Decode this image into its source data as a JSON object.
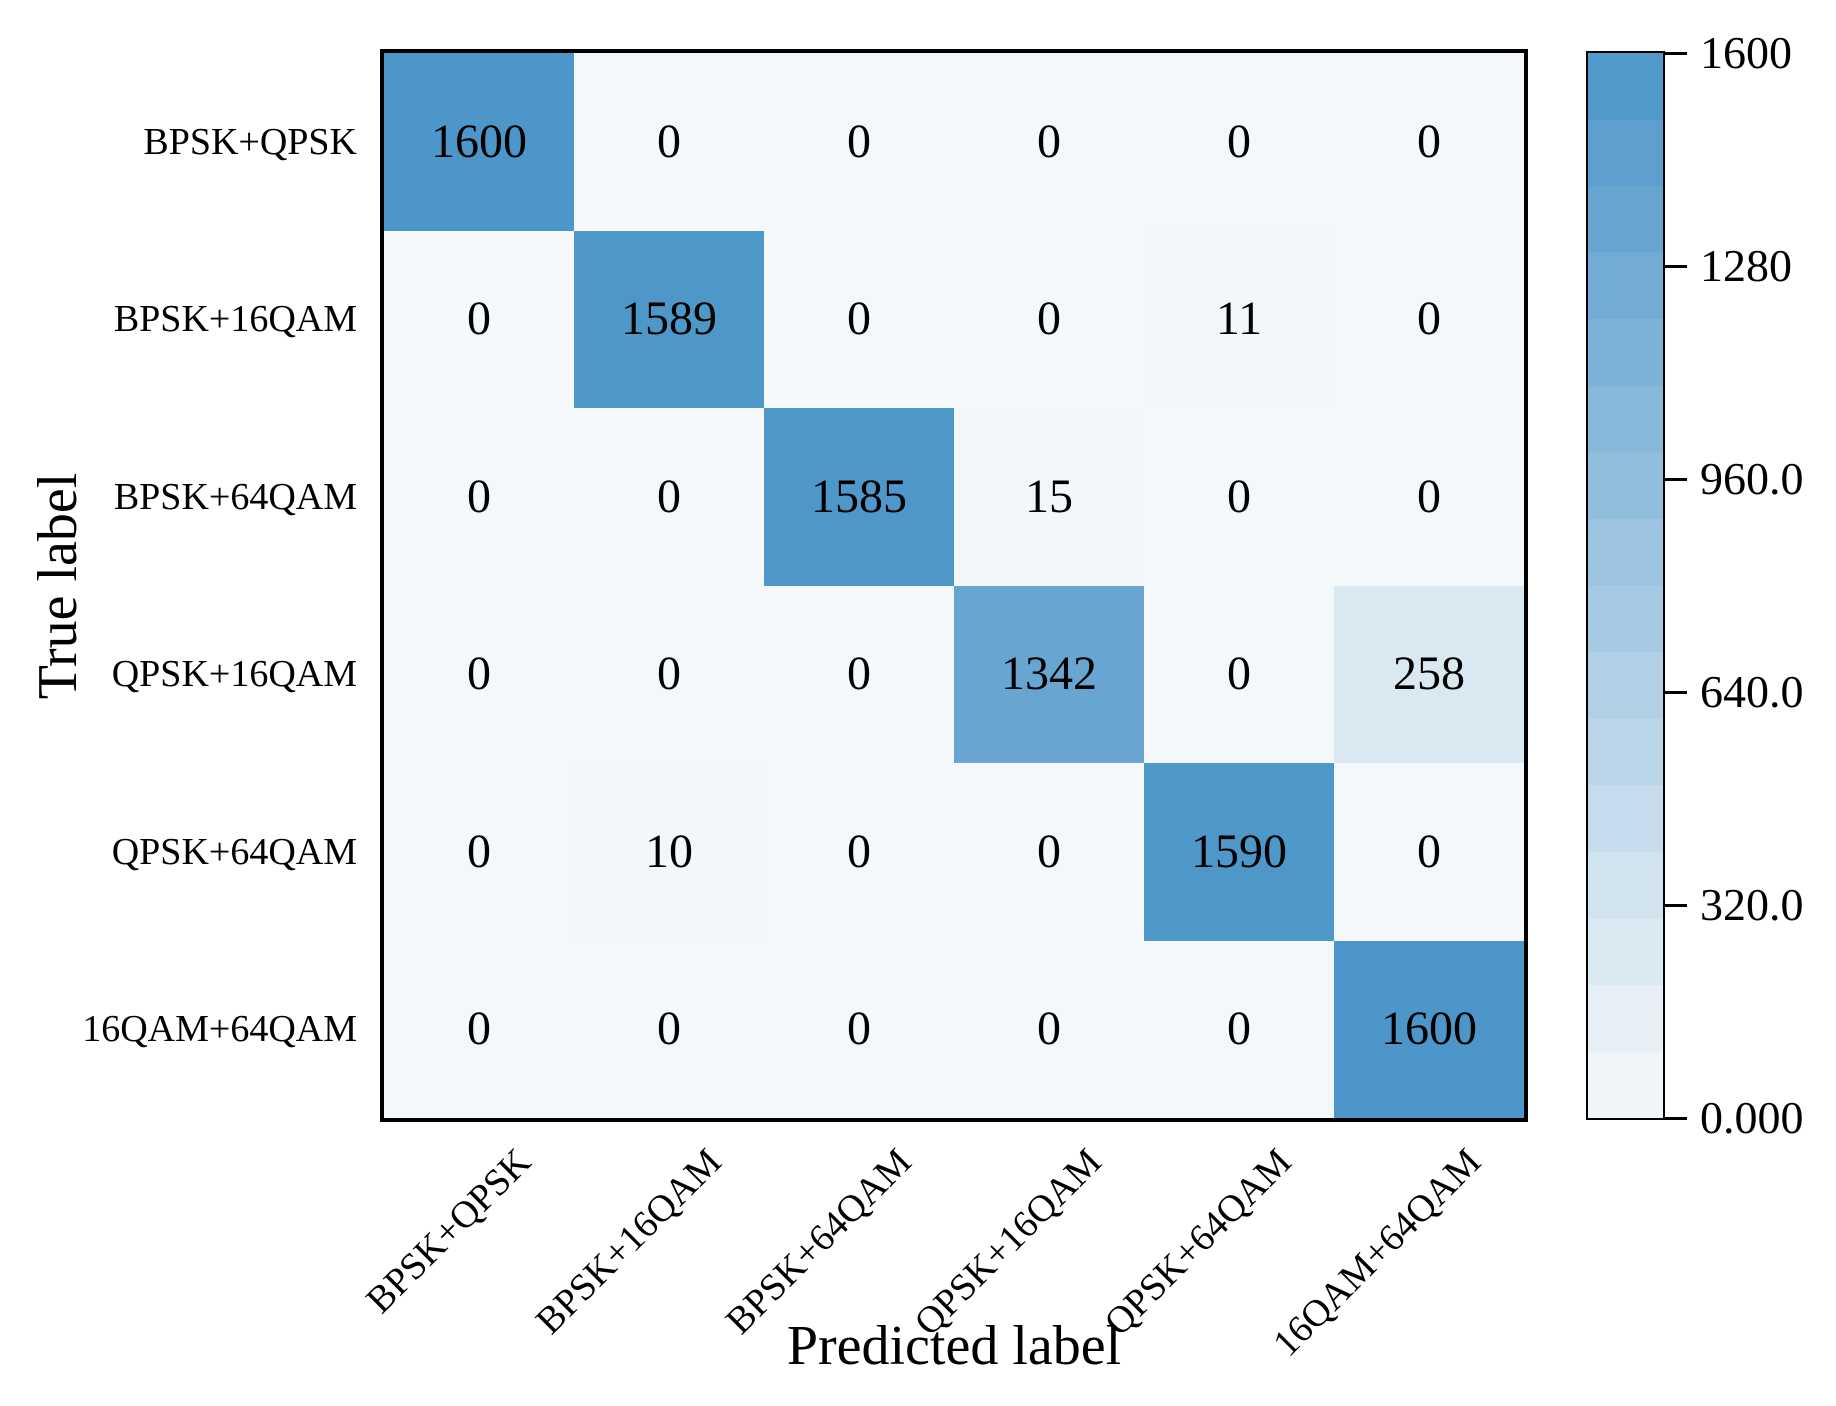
{
  "chart_data": {
    "type": "heatmap",
    "title": "",
    "xlabel": "Predicted label",
    "ylabel": "True label",
    "categories": [
      "BPSK+QPSK",
      "BPSK+16QAM",
      "BPSK+64QAM",
      "QPSK+16QAM",
      "QPSK+64QAM",
      "16QAM+64QAM"
    ],
    "matrix": [
      [
        1600,
        0,
        0,
        0,
        0,
        0
      ],
      [
        0,
        1589,
        0,
        0,
        11,
        0
      ],
      [
        0,
        0,
        1585,
        15,
        0,
        0
      ],
      [
        0,
        0,
        0,
        1342,
        0,
        258
      ],
      [
        0,
        10,
        0,
        0,
        1590,
        0
      ],
      [
        0,
        0,
        0,
        0,
        0,
        1600
      ]
    ],
    "vmin": 0,
    "vmax": 1600,
    "colorbar": {
      "tick_labels": [
        "1600",
        "1280",
        "960.0",
        "640.0",
        "320.0",
        "0.000"
      ],
      "tick_values": [
        1600,
        1280,
        960,
        640,
        320,
        0
      ]
    },
    "legend_position": "right-colorbar",
    "grid": false,
    "colors": {
      "cell_low": "#F5F8FA",
      "cell_high": "#4D96C9",
      "cell_text": "#000000",
      "border": "#000000",
      "background": "#FFFFFF"
    }
  }
}
